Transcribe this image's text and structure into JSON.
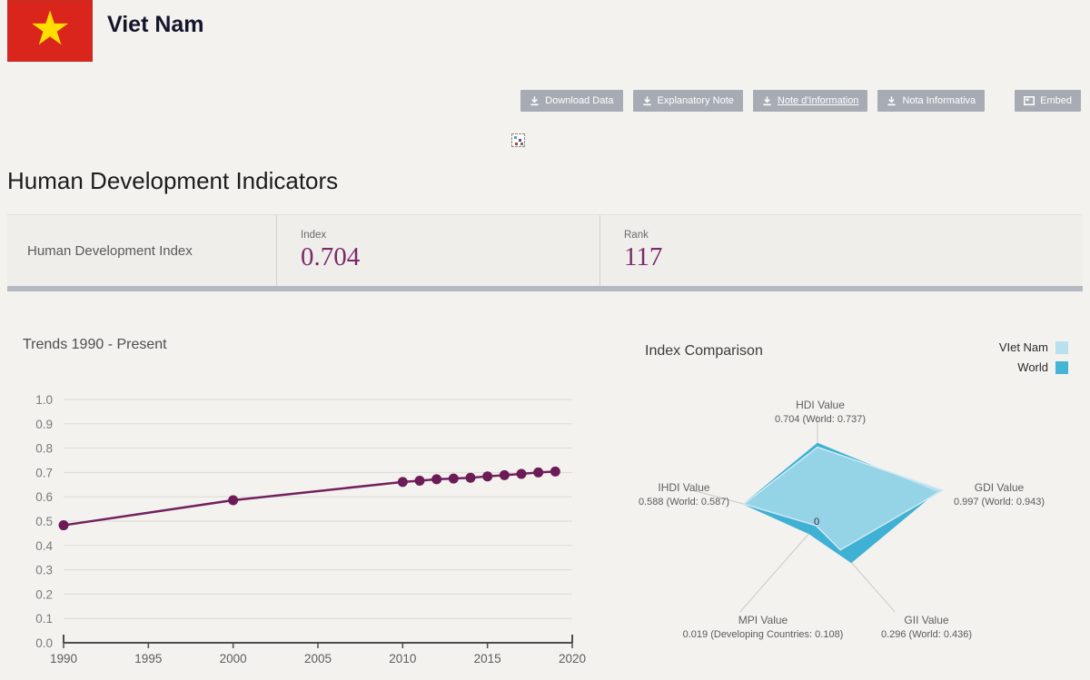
{
  "header": {
    "country": "Viet Nam"
  },
  "flag": {
    "background": "#da251d",
    "star_glyph": "★",
    "star_color": "#ffde00"
  },
  "toolbar": {
    "buttons": [
      {
        "label": "Download Data",
        "icon": "download",
        "underlined": false
      },
      {
        "label": "Explanatory Note",
        "icon": "download",
        "underlined": false
      },
      {
        "label": "Note d'Information",
        "icon": "download",
        "underlined": true
      },
      {
        "label": "Nota Informativa",
        "icon": "download",
        "underlined": false
      },
      {
        "label": "Embed",
        "icon": "embed",
        "underlined": false
      }
    ],
    "button_color": "#a7acb4"
  },
  "page_title": "Human Development Indicators",
  "summary": {
    "row_label": "Human Development Index",
    "index_label": "Index",
    "index_value": "0.704",
    "rank_label": "Rank",
    "rank_value": "117",
    "value_color": "#7b2a68"
  },
  "trends": {
    "title": "Trends 1990 - Present"
  },
  "comparison": {
    "title": "Index Comparison",
    "legend": [
      {
        "label": "VIet Nam",
        "color": "#b9e0ed"
      },
      {
        "label": "World",
        "color": "#45b5d6"
      }
    ],
    "center_label": "0"
  },
  "chart_data": [
    {
      "type": "line",
      "title": "Trends 1990 - Present",
      "x": [
        1990,
        2000,
        2010,
        2011,
        2012,
        2013,
        2014,
        2015,
        2016,
        2017,
        2018,
        2019
      ],
      "values": [
        0.483,
        0.586,
        0.661,
        0.666,
        0.672,
        0.675,
        0.678,
        0.684,
        0.689,
        0.694,
        0.7,
        0.704
      ],
      "xlabel": "",
      "ylabel": "",
      "xlim": [
        1990,
        2020
      ],
      "ylim": [
        0.0,
        1.0
      ],
      "xticks": [
        1990,
        1995,
        2000,
        2005,
        2010,
        2015,
        2020
      ],
      "yticks": [
        0.0,
        0.1,
        0.2,
        0.3,
        0.4,
        0.5,
        0.6,
        0.7,
        0.8,
        0.9,
        1.0
      ],
      "grid": true,
      "line_color": "#73215d",
      "marker_color": "#6b1b56",
      "legend_position": "none"
    },
    {
      "type": "radar",
      "title": "Index Comparison",
      "axes": [
        {
          "label": "HDI Value",
          "sublabel": "0.704 (World: 0.737)"
        },
        {
          "label": "GDI Value",
          "sublabel": "0.997 (World: 0.943)"
        },
        {
          "label": "GII Value",
          "sublabel": "0.296 (World: 0.436)"
        },
        {
          "label": "MPI Value",
          "sublabel": "0.019 (Developing Countries: 0.108)"
        },
        {
          "label": "IHDI Value",
          "sublabel": "0.588 (World: 0.587)"
        }
      ],
      "scale_max": 1.0,
      "center_label": "0",
      "series": [
        {
          "name": "VIet Nam",
          "values": [
            0.704,
            0.997,
            0.296,
            0.019,
            0.588
          ],
          "fill": "rgba(168,218,235,0.82)",
          "stroke": "#cfe9f2"
        },
        {
          "name": "World",
          "values": [
            0.737,
            0.943,
            0.436,
            0.108,
            0.587
          ],
          "fill": "#3fb1d4",
          "stroke": "#3fb1d4"
        }
      ],
      "legend_position": "top-right",
      "grid": false
    }
  ]
}
